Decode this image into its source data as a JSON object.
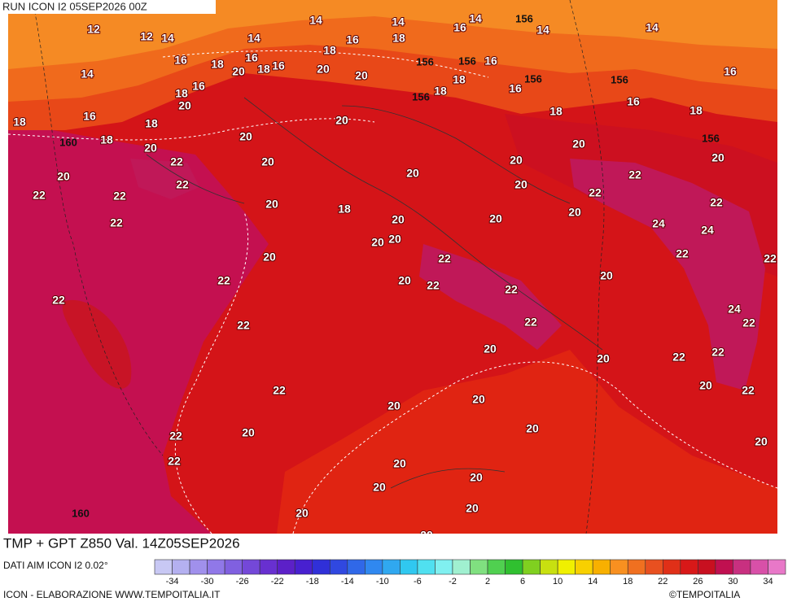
{
  "header": {
    "run": "RUN ICON I2 05SEP2026 00Z"
  },
  "footer": {
    "title": "TMP + GPT Z850 Val. 14Z05SEP2026",
    "source": "DATI AIM ICON I2 0.02°",
    "credit": "ICON - ELABORAZIONE WWW.TEMPOITALIA.IT",
    "copyright": "©TEMPOITALIA"
  },
  "colorbar": {
    "ticks": [
      -34,
      -30,
      -26,
      -22,
      -18,
      -14,
      -10,
      -6,
      -2,
      2,
      6,
      10,
      14,
      18,
      22,
      26,
      30,
      34
    ],
    "colors": [
      "#c8c8f4",
      "#b4b0f0",
      "#a090ec",
      "#9078e8",
      "#8060e0",
      "#7448d8",
      "#6830d0",
      "#5c20c8",
      "#4820d0",
      "#3030d8",
      "#3048e0",
      "#3068e8",
      "#3088f0",
      "#30a8f0",
      "#30c8f0",
      "#50e0f0",
      "#80f0f0",
      "#a0f0d0",
      "#80e080",
      "#50d050",
      "#30c030",
      "#80d020",
      "#c8e010",
      "#f0f000",
      "#f8d000",
      "#f8b000",
      "#f89020",
      "#f07020",
      "#e85020",
      "#e03018",
      "#d81818",
      "#c81020",
      "#c01050",
      "#c83080",
      "#d850a8",
      "#e878c8"
    ]
  },
  "map": {
    "temperature_labels": [
      12,
      12,
      14,
      14,
      14,
      14,
      14,
      16,
      18,
      16,
      14,
      14,
      14,
      16,
      18,
      16,
      16,
      20,
      18,
      18,
      20,
      20,
      16,
      18,
      18,
      16,
      16,
      16,
      18,
      16,
      18,
      18,
      18,
      16,
      20,
      20,
      20,
      20,
      20,
      18,
      18,
      20,
      20,
      20,
      22,
      22,
      22,
      22,
      22,
      22,
      20,
      20,
      20,
      20,
      18,
      20,
      20,
      20,
      20,
      20,
      22,
      22,
      22,
      24,
      24,
      22,
      22,
      20,
      22,
      22,
      22,
      20,
      22,
      20,
      22,
      22,
      22,
      24,
      22,
      20,
      20,
      22,
      22,
      20,
      22,
      22,
      20,
      20,
      20,
      20,
      20,
      22,
      20,
      20,
      20,
      20,
      20,
      20
    ],
    "geopotential_labels": [
      156,
      156,
      156,
      156,
      156,
      156,
      156,
      160,
      160
    ]
  }
}
